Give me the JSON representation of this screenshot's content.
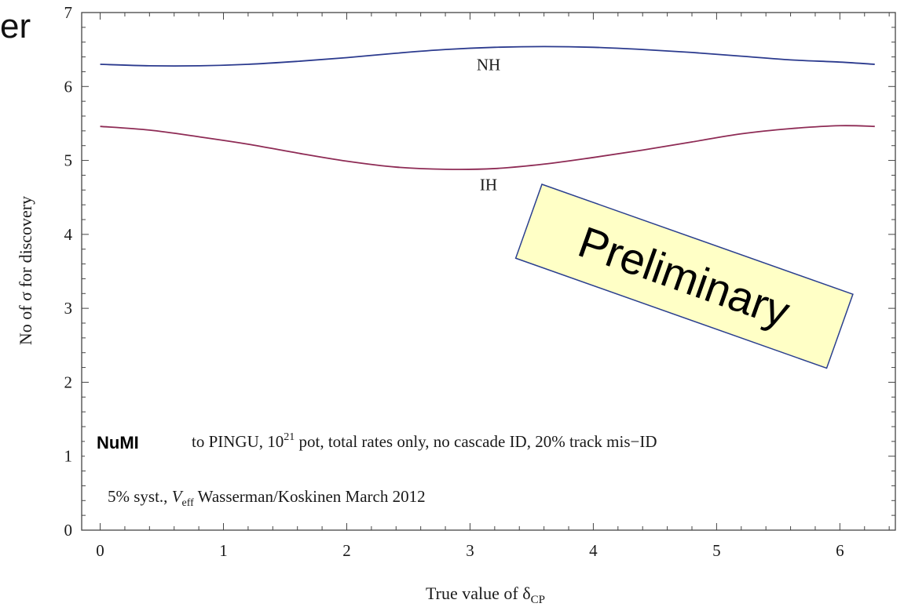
{
  "slide": {
    "title_fragment": "er"
  },
  "chart_data": {
    "type": "line",
    "xlabel": "True value of δ",
    "xlabel_sub": "CP",
    "ylabel": "No of σ for discovery",
    "xlim": [
      -0.15,
      6.45
    ],
    "ylim": [
      0,
      7
    ],
    "xticks": [
      0,
      1,
      2,
      3,
      4,
      5,
      6
    ],
    "yticks": [
      0,
      1,
      2,
      3,
      4,
      5,
      6,
      7
    ],
    "grid": false,
    "series": [
      {
        "name": "NH",
        "color": "#2b3a8e",
        "x": [
          0,
          0.4,
          0.8,
          1.2,
          1.6,
          2.0,
          2.4,
          2.8,
          3.2,
          3.6,
          4.0,
          4.4,
          4.8,
          5.2,
          5.6,
          6.0,
          6.283
        ],
        "values": [
          6.3,
          6.28,
          6.28,
          6.3,
          6.34,
          6.39,
          6.45,
          6.5,
          6.53,
          6.54,
          6.53,
          6.5,
          6.46,
          6.41,
          6.36,
          6.33,
          6.3
        ]
      },
      {
        "name": "IH",
        "color": "#8e2b55",
        "x": [
          0,
          0.4,
          0.8,
          1.2,
          1.6,
          2.0,
          2.4,
          2.8,
          3.2,
          3.6,
          4.0,
          4.4,
          4.8,
          5.2,
          5.6,
          6.0,
          6.283
        ],
        "values": [
          5.46,
          5.41,
          5.32,
          5.22,
          5.1,
          4.99,
          4.91,
          4.88,
          4.89,
          4.95,
          5.04,
          5.14,
          5.25,
          5.36,
          5.43,
          5.47,
          5.46
        ]
      }
    ],
    "curve_labels": [
      {
        "text": "NH",
        "x": 3.15,
        "y": 6.22
      },
      {
        "text": "IH",
        "x": 3.15,
        "y": 4.6
      }
    ],
    "annotations": {
      "line1_bold": "NuMI",
      "line1_part1": "to PINGU, 10",
      "line1_sup": "21",
      "line1_part2": " pot, total rates only, no cascade ID, 20% track mis−ID",
      "line2_part1": "5% syst., ",
      "line2_var": "V",
      "line2_sub": "eff",
      "line2_part2": " Wasserman/Koskinen March 2012"
    },
    "stamp": {
      "text": "Preliminary",
      "fill": "#ffffc6",
      "border": "#2a3f8f"
    }
  }
}
